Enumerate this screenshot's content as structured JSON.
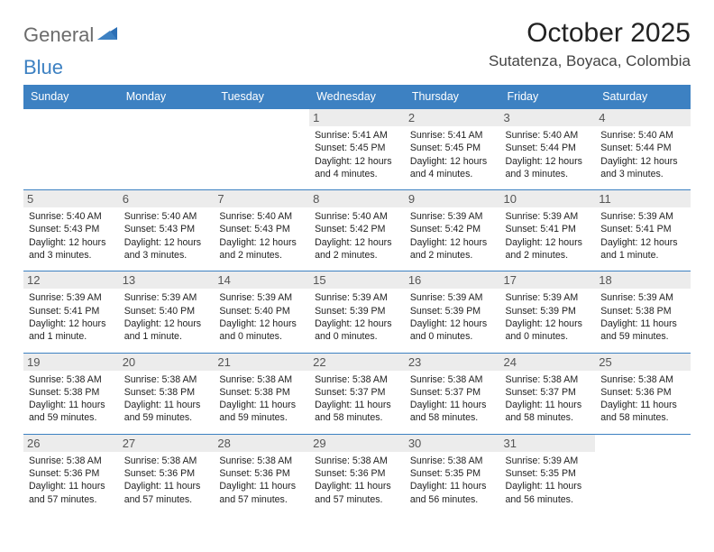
{
  "logo": {
    "word1": "General",
    "word2": "Blue"
  },
  "title": "October 2025",
  "location": "Sutatenza, Boyaca, Colombia",
  "days_of_week": [
    "Sunday",
    "Monday",
    "Tuesday",
    "Wednesday",
    "Thursday",
    "Friday",
    "Saturday"
  ],
  "colors": {
    "header_bg": "#3d81c2",
    "daynum_bg": "#ececec",
    "rule": "#3d81c2",
    "text": "#222222"
  },
  "labels": {
    "sunrise": "Sunrise:",
    "sunset": "Sunset:",
    "daylight": "Daylight:"
  },
  "weeks": [
    [
      {
        "n": "",
        "empty": true
      },
      {
        "n": "",
        "empty": true
      },
      {
        "n": "",
        "empty": true
      },
      {
        "n": "1",
        "sr": "5:41 AM",
        "ss": "5:45 PM",
        "dl": "12 hours and 4 minutes."
      },
      {
        "n": "2",
        "sr": "5:41 AM",
        "ss": "5:45 PM",
        "dl": "12 hours and 4 minutes."
      },
      {
        "n": "3",
        "sr": "5:40 AM",
        "ss": "5:44 PM",
        "dl": "12 hours and 3 minutes."
      },
      {
        "n": "4",
        "sr": "5:40 AM",
        "ss": "5:44 PM",
        "dl": "12 hours and 3 minutes."
      }
    ],
    [
      {
        "n": "5",
        "sr": "5:40 AM",
        "ss": "5:43 PM",
        "dl": "12 hours and 3 minutes."
      },
      {
        "n": "6",
        "sr": "5:40 AM",
        "ss": "5:43 PM",
        "dl": "12 hours and 3 minutes."
      },
      {
        "n": "7",
        "sr": "5:40 AM",
        "ss": "5:43 PM",
        "dl": "12 hours and 2 minutes."
      },
      {
        "n": "8",
        "sr": "5:40 AM",
        "ss": "5:42 PM",
        "dl": "12 hours and 2 minutes."
      },
      {
        "n": "9",
        "sr": "5:39 AM",
        "ss": "5:42 PM",
        "dl": "12 hours and 2 minutes."
      },
      {
        "n": "10",
        "sr": "5:39 AM",
        "ss": "5:41 PM",
        "dl": "12 hours and 2 minutes."
      },
      {
        "n": "11",
        "sr": "5:39 AM",
        "ss": "5:41 PM",
        "dl": "12 hours and 1 minute."
      }
    ],
    [
      {
        "n": "12",
        "sr": "5:39 AM",
        "ss": "5:41 PM",
        "dl": "12 hours and 1 minute."
      },
      {
        "n": "13",
        "sr": "5:39 AM",
        "ss": "5:40 PM",
        "dl": "12 hours and 1 minute."
      },
      {
        "n": "14",
        "sr": "5:39 AM",
        "ss": "5:40 PM",
        "dl": "12 hours and 0 minutes."
      },
      {
        "n": "15",
        "sr": "5:39 AM",
        "ss": "5:39 PM",
        "dl": "12 hours and 0 minutes."
      },
      {
        "n": "16",
        "sr": "5:39 AM",
        "ss": "5:39 PM",
        "dl": "12 hours and 0 minutes."
      },
      {
        "n": "17",
        "sr": "5:39 AM",
        "ss": "5:39 PM",
        "dl": "12 hours and 0 minutes."
      },
      {
        "n": "18",
        "sr": "5:39 AM",
        "ss": "5:38 PM",
        "dl": "11 hours and 59 minutes."
      }
    ],
    [
      {
        "n": "19",
        "sr": "5:38 AM",
        "ss": "5:38 PM",
        "dl": "11 hours and 59 minutes."
      },
      {
        "n": "20",
        "sr": "5:38 AM",
        "ss": "5:38 PM",
        "dl": "11 hours and 59 minutes."
      },
      {
        "n": "21",
        "sr": "5:38 AM",
        "ss": "5:38 PM",
        "dl": "11 hours and 59 minutes."
      },
      {
        "n": "22",
        "sr": "5:38 AM",
        "ss": "5:37 PM",
        "dl": "11 hours and 58 minutes."
      },
      {
        "n": "23",
        "sr": "5:38 AM",
        "ss": "5:37 PM",
        "dl": "11 hours and 58 minutes."
      },
      {
        "n": "24",
        "sr": "5:38 AM",
        "ss": "5:37 PM",
        "dl": "11 hours and 58 minutes."
      },
      {
        "n": "25",
        "sr": "5:38 AM",
        "ss": "5:36 PM",
        "dl": "11 hours and 58 minutes."
      }
    ],
    [
      {
        "n": "26",
        "sr": "5:38 AM",
        "ss": "5:36 PM",
        "dl": "11 hours and 57 minutes."
      },
      {
        "n": "27",
        "sr": "5:38 AM",
        "ss": "5:36 PM",
        "dl": "11 hours and 57 minutes."
      },
      {
        "n": "28",
        "sr": "5:38 AM",
        "ss": "5:36 PM",
        "dl": "11 hours and 57 minutes."
      },
      {
        "n": "29",
        "sr": "5:38 AM",
        "ss": "5:36 PM",
        "dl": "11 hours and 57 minutes."
      },
      {
        "n": "30",
        "sr": "5:38 AM",
        "ss": "5:35 PM",
        "dl": "11 hours and 56 minutes."
      },
      {
        "n": "31",
        "sr": "5:39 AM",
        "ss": "5:35 PM",
        "dl": "11 hours and 56 minutes."
      },
      {
        "n": "",
        "empty": true
      }
    ]
  ]
}
